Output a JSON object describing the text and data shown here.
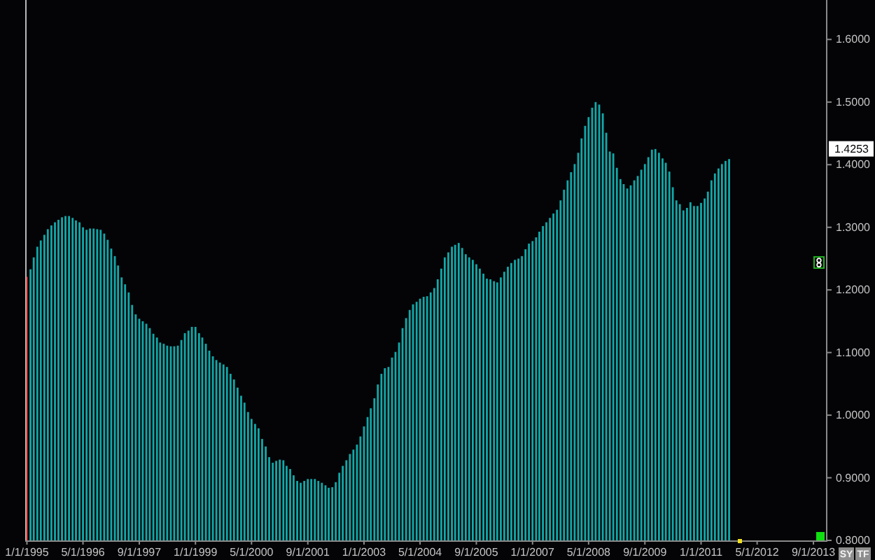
{
  "chart_data": {
    "type": "bar",
    "x": [
      "1995-01",
      "1995-02",
      "1995-03",
      "1995-04",
      "1995-05",
      "1995-06",
      "1995-07",
      "1995-08",
      "1995-09",
      "1995-10",
      "1995-11",
      "1995-12",
      "1996-01",
      "1996-02",
      "1996-03",
      "1996-04",
      "1996-05",
      "1996-06",
      "1996-07",
      "1996-08",
      "1996-09",
      "1996-10",
      "1996-11",
      "1996-12",
      "1997-01",
      "1997-02",
      "1997-03",
      "1997-04",
      "1997-05",
      "1997-06",
      "1997-07",
      "1997-08",
      "1997-09",
      "1997-10",
      "1997-11",
      "1997-12",
      "1998-01",
      "1998-02",
      "1998-03",
      "1998-04",
      "1998-05",
      "1998-06",
      "1998-07",
      "1998-08",
      "1998-09",
      "1998-10",
      "1998-11",
      "1998-12",
      "1999-01",
      "1999-02",
      "1999-03",
      "1999-04",
      "1999-05",
      "1999-06",
      "1999-07",
      "1999-08",
      "1999-09",
      "1999-10",
      "1999-11",
      "1999-12",
      "2000-01",
      "2000-02",
      "2000-03",
      "2000-04",
      "2000-05",
      "2000-06",
      "2000-07",
      "2000-08",
      "2000-09",
      "2000-10",
      "2000-11",
      "2000-12",
      "2001-01",
      "2001-02",
      "2001-03",
      "2001-04",
      "2001-05",
      "2001-06",
      "2001-07",
      "2001-08",
      "2001-09",
      "2001-10",
      "2001-11",
      "2001-12",
      "2002-01",
      "2002-02",
      "2002-03",
      "2002-04",
      "2002-05",
      "2002-06",
      "2002-07",
      "2002-08",
      "2002-09",
      "2002-10",
      "2002-11",
      "2002-12",
      "2003-01",
      "2003-02",
      "2003-03",
      "2003-04",
      "2003-05",
      "2003-06",
      "2003-07",
      "2003-08",
      "2003-09",
      "2003-10",
      "2003-11",
      "2003-12",
      "2004-01",
      "2004-02",
      "2004-03",
      "2004-04",
      "2004-05",
      "2004-06",
      "2004-07",
      "2004-08",
      "2004-09",
      "2004-10",
      "2004-11",
      "2004-12",
      "2005-01",
      "2005-02",
      "2005-03",
      "2005-04",
      "2005-05",
      "2005-06",
      "2005-07",
      "2005-08",
      "2005-09",
      "2005-10",
      "2005-11",
      "2005-12",
      "2006-01",
      "2006-02",
      "2006-03",
      "2006-04",
      "2006-05",
      "2006-06",
      "2006-07",
      "2006-08",
      "2006-09",
      "2006-10",
      "2006-11",
      "2006-12",
      "2007-01",
      "2007-02",
      "2007-03",
      "2007-04",
      "2007-05",
      "2007-06",
      "2007-07",
      "2007-08",
      "2007-09",
      "2007-10",
      "2007-11",
      "2007-12",
      "2008-01",
      "2008-02",
      "2008-03",
      "2008-04",
      "2008-05",
      "2008-06",
      "2008-07",
      "2008-08",
      "2008-09",
      "2008-10",
      "2008-11",
      "2008-12",
      "2009-01",
      "2009-02",
      "2009-03",
      "2009-04",
      "2009-05",
      "2009-06",
      "2009-07",
      "2009-08",
      "2009-09",
      "2009-10",
      "2009-11",
      "2009-12",
      "2010-01",
      "2010-02",
      "2010-03",
      "2010-04",
      "2010-05",
      "2010-06",
      "2010-07",
      "2010-08",
      "2010-09",
      "2010-10",
      "2010-11",
      "2010-12",
      "2011-01",
      "2011-02",
      "2011-03",
      "2011-04",
      "2011-05",
      "2011-06",
      "2011-07",
      "2011-08",
      "2011-09"
    ],
    "values": [
      1.221,
      1.233,
      1.252,
      1.269,
      1.279,
      1.288,
      1.297,
      1.303,
      1.308,
      1.312,
      1.316,
      1.318,
      1.318,
      1.315,
      1.311,
      1.308,
      1.3,
      1.296,
      1.298,
      1.298,
      1.297,
      1.296,
      1.29,
      1.28,
      1.266,
      1.254,
      1.239,
      1.22,
      1.209,
      1.196,
      1.176,
      1.161,
      1.154,
      1.15,
      1.146,
      1.139,
      1.13,
      1.124,
      1.116,
      1.114,
      1.111,
      1.11,
      1.11,
      1.111,
      1.12,
      1.131,
      1.135,
      1.141,
      1.141,
      1.131,
      1.124,
      1.114,
      1.103,
      1.094,
      1.088,
      1.084,
      1.081,
      1.077,
      1.066,
      1.057,
      1.044,
      1.031,
      1.02,
      1.005,
      0.994,
      0.986,
      0.979,
      0.962,
      0.95,
      0.933,
      0.924,
      0.927,
      0.929,
      0.928,
      0.919,
      0.914,
      0.904,
      0.895,
      0.892,
      0.895,
      0.898,
      0.898,
      0.898,
      0.895,
      0.892,
      0.888,
      0.884,
      0.885,
      0.893,
      0.908,
      0.919,
      0.928,
      0.938,
      0.945,
      0.953,
      0.966,
      0.982,
      0.997,
      1.011,
      1.027,
      1.049,
      1.066,
      1.075,
      1.077,
      1.092,
      1.101,
      1.116,
      1.139,
      1.155,
      1.168,
      1.177,
      1.181,
      1.186,
      1.189,
      1.19,
      1.196,
      1.203,
      1.217,
      1.234,
      1.252,
      1.26,
      1.269,
      1.272,
      1.275,
      1.267,
      1.257,
      1.252,
      1.248,
      1.241,
      1.234,
      1.226,
      1.218,
      1.217,
      1.214,
      1.212,
      1.22,
      1.229,
      1.237,
      1.243,
      1.248,
      1.25,
      1.254,
      1.265,
      1.274,
      1.278,
      1.284,
      1.293,
      1.302,
      1.308,
      1.315,
      1.322,
      1.328,
      1.343,
      1.36,
      1.375,
      1.388,
      1.401,
      1.419,
      1.442,
      1.462,
      1.476,
      1.491,
      1.5,
      1.496,
      1.482,
      1.451,
      1.421,
      1.418,
      1.395,
      1.377,
      1.369,
      1.362,
      1.367,
      1.375,
      1.382,
      1.392,
      1.401,
      1.412,
      1.424,
      1.425,
      1.419,
      1.41,
      1.403,
      1.389,
      1.364,
      1.343,
      1.337,
      1.327,
      1.331,
      1.34,
      1.334,
      1.334,
      1.339,
      1.346,
      1.357,
      1.375,
      1.386,
      1.394,
      1.401,
      1.406,
      1.409
    ],
    "colors": [
      "#c81414",
      "#13a8a8",
      "#13a8a8",
      "#13a8a8",
      "#13a8a8",
      "#13a8a8",
      "#13a8a8",
      "#13a8a8",
      "#13a8a8",
      "#13a8a8",
      "#13a8a8",
      "#13a8a8",
      "#13a8a8",
      "#13a8a8",
      "#13a8a8",
      "#13a8a8",
      "#13a8a8",
      "#13a8a8",
      "#13a8a8",
      "#13a8a8",
      "#13a8a8",
      "#13a8a8",
      "#13a8a8",
      "#13a8a8",
      "#13a8a8",
      "#13a8a8",
      "#13a8a8",
      "#13a8a8",
      "#13a8a8",
      "#13a8a8",
      "#13a8a8",
      "#13a8a8",
      "#13a8a8",
      "#13a8a8",
      "#13a8a8",
      "#13a8a8",
      "#13a8a8",
      "#13a8a8",
      "#13a8a8",
      "#13a8a8",
      "#13a8a8",
      "#13a8a8",
      "#13a8a8",
      "#13a8a8",
      "#13a8a8",
      "#13a8a8",
      "#13a8a8",
      "#13a8a8",
      "#13a8a8",
      "#13a8a8",
      "#13a8a8",
      "#13a8a8",
      "#13a8a8",
      "#13a8a8",
      "#13a8a8",
      "#13a8a8",
      "#13a8a8",
      "#13a8a8",
      "#13a8a8",
      "#13a8a8",
      "#13a8a8",
      "#13a8a8",
      "#13a8a8",
      "#13a8a8",
      "#13a8a8",
      "#13a8a8",
      "#13a8a8",
      "#13a8a8",
      "#13a8a8",
      "#13a8a8",
      "#13a8a8",
      "#13a8a8",
      "#13a8a8",
      "#13a8a8",
      "#13a8a8",
      "#13a8a8",
      "#13a8a8",
      "#13a8a8",
      "#13a8a8",
      "#13a8a8",
      "#13a8a8",
      "#13a8a8",
      "#13a8a8",
      "#13a8a8",
      "#13a8a8",
      "#13a8a8",
      "#13a8a8",
      "#13a8a8",
      "#13a8a8",
      "#13a8a8",
      "#13a8a8",
      "#13a8a8",
      "#13a8a8",
      "#13a8a8",
      "#13a8a8",
      "#13a8a8",
      "#13a8a8",
      "#13a8a8",
      "#13a8a8",
      "#13a8a8",
      "#13a8a8",
      "#13a8a8",
      "#13a8a8",
      "#13a8a8",
      "#13a8a8",
      "#13a8a8",
      "#13a8a8",
      "#13a8a8",
      "#13a8a8",
      "#13a8a8",
      "#13a8a8",
      "#13a8a8",
      "#13a8a8",
      "#13a8a8",
      "#13a8a8",
      "#13a8a8",
      "#13a8a8",
      "#13a8a8",
      "#13a8a8",
      "#13a8a8",
      "#13a8a8",
      "#13a8a8",
      "#13a8a8",
      "#13a8a8",
      "#13a8a8",
      "#13a8a8",
      "#13a8a8",
      "#13a8a8",
      "#13a8a8",
      "#13a8a8",
      "#13a8a8",
      "#13a8a8",
      "#13a8a8",
      "#13a8a8",
      "#13a8a8",
      "#13a8a8",
      "#13a8a8",
      "#13a8a8",
      "#13a8a8",
      "#13a8a8",
      "#13a8a8",
      "#13a8a8",
      "#13a8a8",
      "#13a8a8",
      "#13a8a8",
      "#13a8a8",
      "#13a8a8",
      "#13a8a8",
      "#13a8a8",
      "#13a8a8",
      "#13a8a8",
      "#13a8a8",
      "#13a8a8",
      "#13a8a8",
      "#13a8a8",
      "#13a8a8",
      "#13a8a8",
      "#13a8a8",
      "#13a8a8",
      "#13a8a8",
      "#13a8a8",
      "#13a8a8",
      "#13a8a8",
      "#13a8a8",
      "#13a8a8",
      "#13a8a8",
      "#13a8a8",
      "#13a8a8",
      "#13a8a8",
      "#13a8a8",
      "#13a8a8",
      "#13a8a8",
      "#13a8a8",
      "#13a8a8",
      "#13a8a8",
      "#13a8a8",
      "#13a8a8",
      "#13a8a8",
      "#13a8a8",
      "#13a8a8",
      "#13a8a8",
      "#13a8a8",
      "#13a8a8",
      "#13a8a8",
      "#13a8a8",
      "#13a8a8",
      "#13a8a8",
      "#13a8a8",
      "#13a8a8",
      "#13a8a8",
      "#13a8a8",
      "#13a8a8",
      "#13a8a8",
      "#13a8a8",
      "#13a8a8",
      "#13a8a8",
      "#13a8a8",
      "#13a8a8",
      "#13a8a8",
      "#13a8a8",
      "#13a8a8"
    ],
    "xlim": [
      "1994-12-17",
      "2013-12-19"
    ],
    "xticks": [
      {
        "value": "1995-01-01",
        "label": "1/1/1995"
      },
      {
        "value": "1996-05-01",
        "label": "5/1/1996"
      },
      {
        "value": "1997-09-01",
        "label": "9/1/1997"
      },
      {
        "value": "1999-01-01",
        "label": "1/1/1999"
      },
      {
        "value": "2000-05-01",
        "label": "5/1/2000"
      },
      {
        "value": "2001-09-01",
        "label": "9/1/2001"
      },
      {
        "value": "2003-01-01",
        "label": "1/1/2003"
      },
      {
        "value": "2004-05-01",
        "label": "5/1/2004"
      },
      {
        "value": "2005-09-01",
        "label": "9/1/2005"
      },
      {
        "value": "2007-01-01",
        "label": "1/1/2007"
      },
      {
        "value": "2008-05-01",
        "label": "5/1/2008"
      },
      {
        "value": "2009-09-01",
        "label": "9/1/2009"
      },
      {
        "value": "2011-01-01",
        "label": "1/1/2011"
      },
      {
        "value": "2012-05-01",
        "label": "5/1/2012"
      },
      {
        "value": "2013-09-01",
        "label": "9/1/2013"
      }
    ],
    "ylim": [
      0.8,
      1.663
    ],
    "yticks": [
      {
        "value": 0.8,
        "label": "0.8000"
      },
      {
        "value": 0.9,
        "label": "0.9000"
      },
      {
        "value": 1.0,
        "label": "1.0000"
      },
      {
        "value": 1.1,
        "label": "1.1000"
      },
      {
        "value": 1.2,
        "label": "1.2000"
      },
      {
        "value": 1.3,
        "label": "1.3000"
      },
      {
        "value": 1.4,
        "label": "1.4000"
      },
      {
        "value": 1.5,
        "label": "1.5000"
      },
      {
        "value": 1.6,
        "label": "1.6000"
      }
    ],
    "annotations": [
      {
        "text": "1.4253",
        "y": 1.4253
      },
      "SY",
      "TF"
    ]
  }
}
